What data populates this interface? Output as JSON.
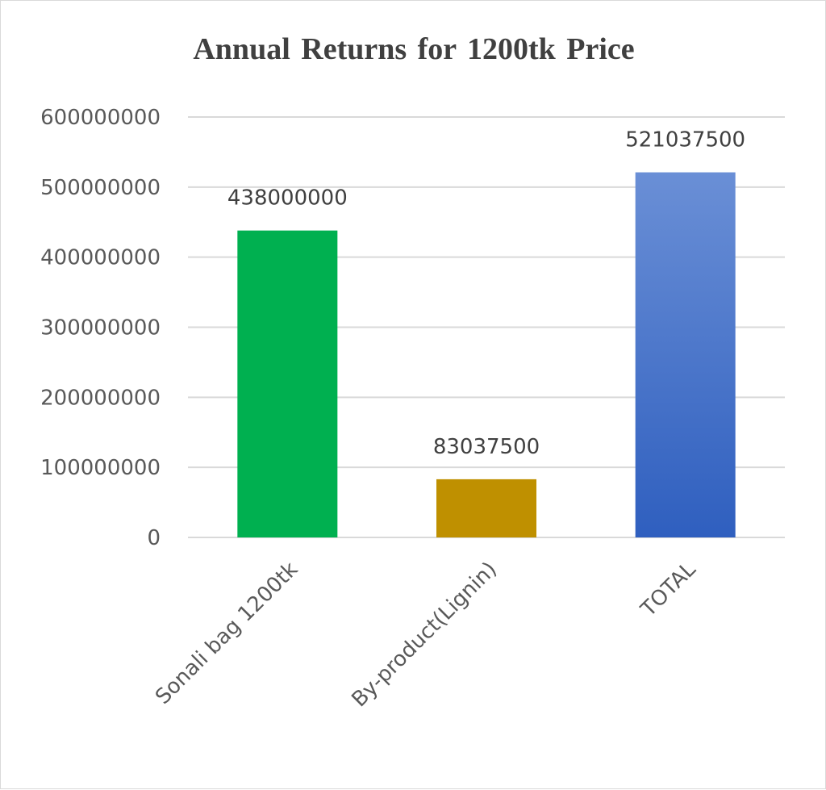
{
  "chart_data": {
    "type": "bar",
    "title": "Annual Returns for 1200tk Price",
    "categories": [
      "Sonali bag 1200tk",
      "By-product(Lignin)",
      "TOTAL"
    ],
    "values": [
      438000000,
      83037500,
      521037500
    ],
    "data_labels": [
      "438000000",
      "83037500",
      "521037500"
    ],
    "ylim": [
      0,
      600000000
    ],
    "y_ticks": [
      0,
      100000000,
      200000000,
      300000000,
      400000000,
      500000000,
      600000000
    ],
    "y_tick_labels": [
      "0",
      "100000000",
      "200000000",
      "300000000",
      "400000000",
      "500000000",
      "600000000"
    ],
    "grid": true,
    "legend": "none",
    "colors": [
      "#00b050",
      "#bf9000",
      "#4472c4"
    ],
    "total_gradient": [
      "#6a8fd6",
      "#2f5fbf"
    ]
  }
}
